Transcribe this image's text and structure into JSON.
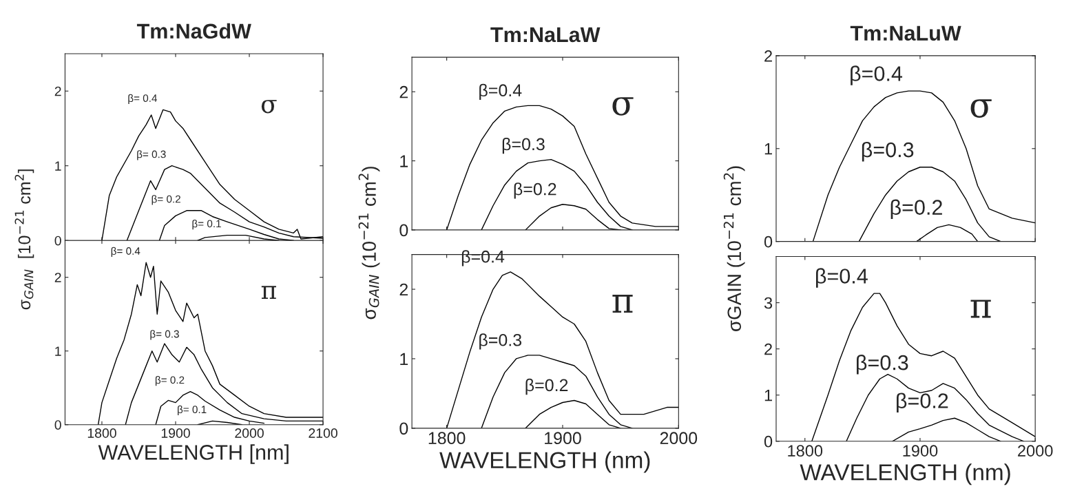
{
  "chart_data": [
    {
      "type": "line",
      "title": "Tm:NaGdW",
      "ylabel": "σ$_{GAIN}$  [10$^{−21}$ cm$^{2}$]",
      "xlim": [
        1750,
        2100
      ],
      "ylim": [
        0,
        2.5
      ],
      "xticks": [
        1800,
        1900,
        2000,
        2100
      ],
      "yticks": [
        0,
        1,
        2
      ],
      "tick_labels": "y",
      "series": [
        {
          "name": "β= 0.4",
          "color": "#000000",
          "x": [
            1800,
            1810,
            1820,
            1840,
            1850,
            1860,
            1867,
            1873,
            1883,
            1893,
            1900,
            1910,
            1920,
            1940,
            1960,
            1980,
            2000,
            2020,
            2040,
            2060,
            2065,
            2070,
            2100
          ],
          "values": [
            0,
            0.6,
            0.85,
            1.2,
            1.4,
            1.55,
            1.68,
            1.5,
            1.75,
            1.72,
            1.6,
            1.5,
            1.35,
            1.05,
            0.75,
            0.55,
            0.4,
            0.25,
            0.15,
            0.1,
            0.15,
            0.02,
            0.05
          ]
        },
        {
          "name": "β= 0.3",
          "color": "#000000",
          "x": [
            1834,
            1850,
            1866,
            1873,
            1885,
            1895,
            1910,
            1920,
            1940,
            1960,
            1980,
            2000,
            2020,
            2040,
            2060,
            2100
          ],
          "values": [
            0,
            0.4,
            0.8,
            0.68,
            0.95,
            1.0,
            0.95,
            0.9,
            0.7,
            0.5,
            0.38,
            0.25,
            0.18,
            0.1,
            0.05,
            0.03
          ]
        },
        {
          "name": "β= 0.2",
          "color": "#000000",
          "x": [
            1878,
            1885,
            1900,
            1915,
            1935,
            1950,
            1970,
            2000,
            2020,
            2040,
            2060
          ],
          "values": [
            0,
            0.2,
            0.33,
            0.4,
            0.4,
            0.32,
            0.25,
            0.15,
            0.08,
            0.02,
            0
          ]
        },
        {
          "name": "β= 0.1",
          "color": "#000000",
          "x": [
            1930,
            1940,
            1970,
            1995,
            2020,
            2040
          ],
          "values": [
            0,
            0.04,
            0.07,
            0.07,
            0.02,
            0
          ]
        }
      ],
      "annotations": [
        "σ"
      ]
    },
    {
      "type": "line",
      "xlabel": "WAVELENGTH [nm]",
      "xlim": [
        1750,
        2100
      ],
      "ylim": [
        0,
        2.5
      ],
      "xticks": [
        1800,
        1900,
        2000,
        2100
      ],
      "yticks": [
        0,
        1,
        2
      ],
      "series": [
        {
          "name": "β= 0.4",
          "color": "#000000",
          "x": [
            1795,
            1800,
            1810,
            1820,
            1830,
            1840,
            1848,
            1853,
            1860,
            1866,
            1870,
            1875,
            1880,
            1890,
            1900,
            1910,
            1915,
            1925,
            1930,
            1940,
            1950,
            1960,
            1980,
            2000,
            2020,
            2050,
            2100
          ],
          "values": [
            0,
            0.3,
            0.6,
            0.9,
            1.15,
            1.5,
            1.9,
            1.75,
            2.2,
            2.0,
            2.15,
            1.5,
            1.95,
            1.8,
            1.55,
            1.4,
            1.65,
            1.45,
            1.5,
            1.0,
            0.8,
            0.55,
            0.4,
            0.25,
            0.15,
            0.1,
            0.1
          ]
        },
        {
          "name": "β= 0.3",
          "color": "#000000",
          "x": [
            1832,
            1840,
            1850,
            1860,
            1868,
            1875,
            1885,
            1895,
            1905,
            1915,
            1925,
            1935,
            1950,
            1970,
            1990,
            2020,
            2050,
            2100
          ],
          "values": [
            0,
            0.3,
            0.55,
            0.8,
            1.0,
            0.85,
            1.1,
            0.95,
            0.85,
            1.05,
            0.95,
            0.75,
            0.5,
            0.3,
            0.15,
            0.08,
            0.05,
            0.05
          ]
        },
        {
          "name": "β= 0.2",
          "color": "#000000",
          "x": [
            1873,
            1880,
            1890,
            1900,
            1910,
            1920,
            1930,
            1940,
            1960,
            1980,
            2000,
            2020
          ],
          "values": [
            0,
            0.25,
            0.33,
            0.3,
            0.4,
            0.45,
            0.4,
            0.32,
            0.2,
            0.1,
            0.05,
            0.02
          ]
        },
        {
          "name": "β= 0.1",
          "color": "#000000",
          "x": [
            1930,
            1950,
            1970,
            1990
          ],
          "values": [
            0,
            0.05,
            0.03,
            0
          ]
        }
      ],
      "annotations": [
        "π"
      ]
    },
    {
      "type": "line",
      "title": "Tm:NaLaW",
      "ylabel": "σ$_{GAIN}$ (10$^{−21}$ cm$^{2}$)",
      "xlim": [
        1770,
        2000
      ],
      "ylim": [
        0,
        2.5
      ],
      "xticks": [
        1800,
        1900,
        2000
      ],
      "yticks": [
        0,
        1,
        2
      ],
      "tick_labels": "y",
      "series": [
        {
          "name": "β=0.4",
          "color": "#000000",
          "x": [
            1800,
            1810,
            1820,
            1830,
            1840,
            1850,
            1860,
            1870,
            1880,
            1890,
            1900,
            1910,
            1920,
            1930,
            1940,
            1950,
            1960,
            1980,
            2000
          ],
          "values": [
            0,
            0.5,
            0.95,
            1.3,
            1.55,
            1.72,
            1.78,
            1.8,
            1.8,
            1.75,
            1.65,
            1.5,
            1.1,
            0.75,
            0.4,
            0.2,
            0.1,
            0.05,
            0.05
          ]
        },
        {
          "name": "β=0.3",
          "color": "#000000",
          "x": [
            1830,
            1840,
            1850,
            1860,
            1870,
            1880,
            1890,
            1900,
            1910,
            1920,
            1930,
            1940,
            1950,
            1960
          ],
          "values": [
            0,
            0.35,
            0.65,
            0.85,
            0.97,
            1.0,
            1.02,
            0.95,
            0.85,
            0.65,
            0.4,
            0.2,
            0.05,
            0
          ]
        },
        {
          "name": "β=0.2",
          "color": "#000000",
          "x": [
            1868,
            1880,
            1890,
            1900,
            1910,
            1920,
            1930,
            1940,
            1950
          ],
          "values": [
            0,
            0.2,
            0.32,
            0.37,
            0.35,
            0.3,
            0.15,
            0.02,
            0
          ]
        }
      ],
      "annotations": [
        "σ"
      ]
    },
    {
      "type": "line",
      "xlabel": "WAVELENGTH (nm)",
      "xlim": [
        1770,
        2000
      ],
      "ylim": [
        0,
        2.5
      ],
      "xticks": [
        1800,
        1900,
        2000
      ],
      "yticks": [
        0,
        1,
        2
      ],
      "series": [
        {
          "name": "β=0.4",
          "color": "#000000",
          "x": [
            1800,
            1810,
            1820,
            1830,
            1840,
            1848,
            1855,
            1865,
            1880,
            1890,
            1900,
            1910,
            1920,
            1930,
            1940,
            1950,
            1970,
            1990,
            2000
          ],
          "values": [
            0,
            0.55,
            1.1,
            1.6,
            2.0,
            2.2,
            2.25,
            2.15,
            1.9,
            1.75,
            1.6,
            1.5,
            1.25,
            0.8,
            0.4,
            0.2,
            0.2,
            0.3,
            0.3
          ]
        },
        {
          "name": "β=0.3",
          "color": "#000000",
          "x": [
            1830,
            1840,
            1850,
            1860,
            1870,
            1880,
            1890,
            1900,
            1910,
            1920,
            1930,
            1940,
            1950,
            1960
          ],
          "values": [
            0,
            0.45,
            0.8,
            1.0,
            1.05,
            1.05,
            1.0,
            0.95,
            0.9,
            0.75,
            0.45,
            0.2,
            0.05,
            0
          ]
        },
        {
          "name": "β=0.2",
          "color": "#000000",
          "x": [
            1868,
            1880,
            1890,
            1900,
            1910,
            1920,
            1930,
            1940,
            1950
          ],
          "values": [
            0,
            0.2,
            0.3,
            0.37,
            0.4,
            0.35,
            0.2,
            0.05,
            0
          ]
        }
      ],
      "annotations": [
        "π"
      ]
    },
    {
      "type": "line",
      "title": "Tm:NaLuW",
      "ylabel": "σGAIN (10$^{−21}$ cm$^{2}$)",
      "xlim": [
        1775,
        2000
      ],
      "ylim": [
        0,
        2
      ],
      "xticks": [
        1800,
        1900,
        2000
      ],
      "yticks": [
        0,
        1,
        2
      ],
      "tick_labels": "y",
      "series": [
        {
          "name": "β=0.4",
          "color": "#000000",
          "x": [
            1807,
            1820,
            1830,
            1840,
            1850,
            1860,
            1870,
            1880,
            1890,
            1900,
            1910,
            1920,
            1930,
            1940,
            1950,
            1960,
            1980,
            2000
          ],
          "values": [
            0,
            0.5,
            0.8,
            1.05,
            1.3,
            1.45,
            1.55,
            1.6,
            1.62,
            1.62,
            1.6,
            1.5,
            1.3,
            1.0,
            0.6,
            0.35,
            0.25,
            0.2
          ]
        },
        {
          "name": "β=0.3",
          "color": "#000000",
          "x": [
            1847,
            1860,
            1870,
            1880,
            1890,
            1900,
            1910,
            1920,
            1930,
            1940,
            1950,
            1960,
            1970
          ],
          "values": [
            0,
            0.3,
            0.5,
            0.65,
            0.75,
            0.8,
            0.8,
            0.75,
            0.65,
            0.45,
            0.2,
            0.05,
            0
          ]
        },
        {
          "name": "β=0.2",
          "color": "#000000",
          "x": [
            1897,
            1905,
            1915,
            1925,
            1935,
            1945,
            1950
          ],
          "values": [
            0,
            0.07,
            0.15,
            0.18,
            0.15,
            0.08,
            0
          ]
        }
      ],
      "annotations": [
        "σ"
      ]
    },
    {
      "type": "line",
      "xlabel": "WAVELENGTH (nm)",
      "xlim": [
        1775,
        2000
      ],
      "ylim": [
        0,
        4
      ],
      "xticks": [
        1800,
        1900,
        2000
      ],
      "yticks": [
        0,
        1,
        2,
        3
      ],
      "series": [
        {
          "name": "β=0.4",
          "color": "#000000",
          "x": [
            1806,
            1820,
            1830,
            1840,
            1850,
            1860,
            1865,
            1870,
            1880,
            1890,
            1900,
            1910,
            1920,
            1930,
            1940,
            1950,
            1960,
            1980,
            2000
          ],
          "values": [
            0,
            1.0,
            1.75,
            2.4,
            2.9,
            3.2,
            3.2,
            3.0,
            2.5,
            2.1,
            1.9,
            1.85,
            1.95,
            1.8,
            1.4,
            1.0,
            0.7,
            0.4,
            0.1
          ]
        },
        {
          "name": "β=0.3",
          "color": "#000000",
          "x": [
            1836,
            1845,
            1855,
            1865,
            1872,
            1880,
            1890,
            1900,
            1910,
            1920,
            1930,
            1940,
            1950,
            1960,
            1980,
            1990
          ],
          "values": [
            0,
            0.5,
            1.0,
            1.35,
            1.45,
            1.35,
            1.15,
            1.05,
            1.1,
            1.25,
            1.15,
            0.9,
            0.6,
            0.35,
            0.1,
            0
          ]
        },
        {
          "name": "β=0.2",
          "color": "#000000",
          "x": [
            1876,
            1890,
            1900,
            1910,
            1920,
            1930,
            1940,
            1950,
            1960,
            1970
          ],
          "values": [
            0,
            0.2,
            0.27,
            0.35,
            0.45,
            0.5,
            0.4,
            0.25,
            0.1,
            0
          ]
        }
      ],
      "annotations": [
        "π"
      ]
    }
  ]
}
